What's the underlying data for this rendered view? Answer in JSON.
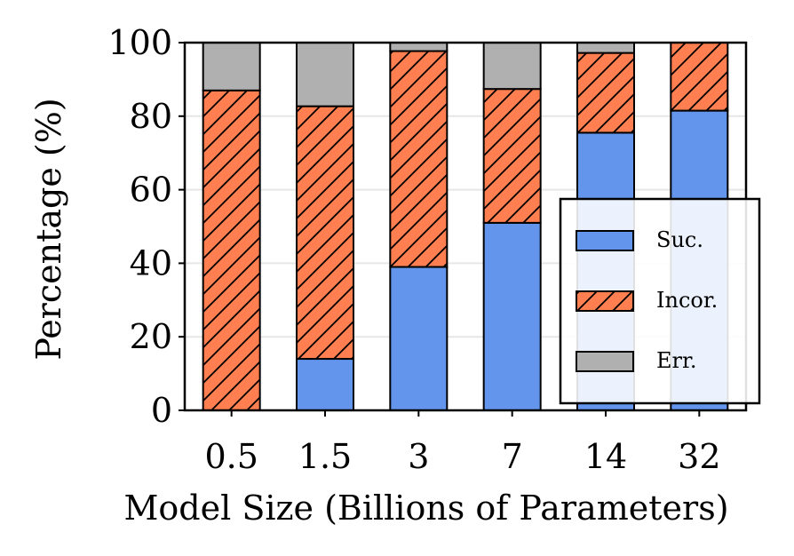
{
  "chart_data": {
    "type": "bar",
    "stacked": true,
    "categories": [
      "0.5",
      "1.5",
      "3",
      "7",
      "14",
      "32"
    ],
    "series": [
      {
        "name": "Suc.",
        "values": [
          0,
          14,
          39,
          51,
          75.5,
          81.5
        ],
        "color": "#6495ED",
        "pattern": "none"
      },
      {
        "name": "Incor.",
        "values": [
          87,
          68.7,
          58.7,
          36.4,
          21.7,
          18.5
        ],
        "color": "#FF7F50",
        "pattern": "diagonal-hatch"
      },
      {
        "name": "Err.",
        "values": [
          13,
          17.3,
          2.3,
          12.6,
          2.8,
          0
        ],
        "color": "#B0B0B0",
        "pattern": "none"
      }
    ],
    "xlabel": "Model Size (Billions of Parameters)",
    "ylabel": "Percentage (%)",
    "ylim": [
      0,
      100
    ],
    "yticks": [
      "0",
      "20",
      "40",
      "60",
      "80",
      "100"
    ],
    "grid": "horizontal",
    "legend_position": "lower-right"
  }
}
